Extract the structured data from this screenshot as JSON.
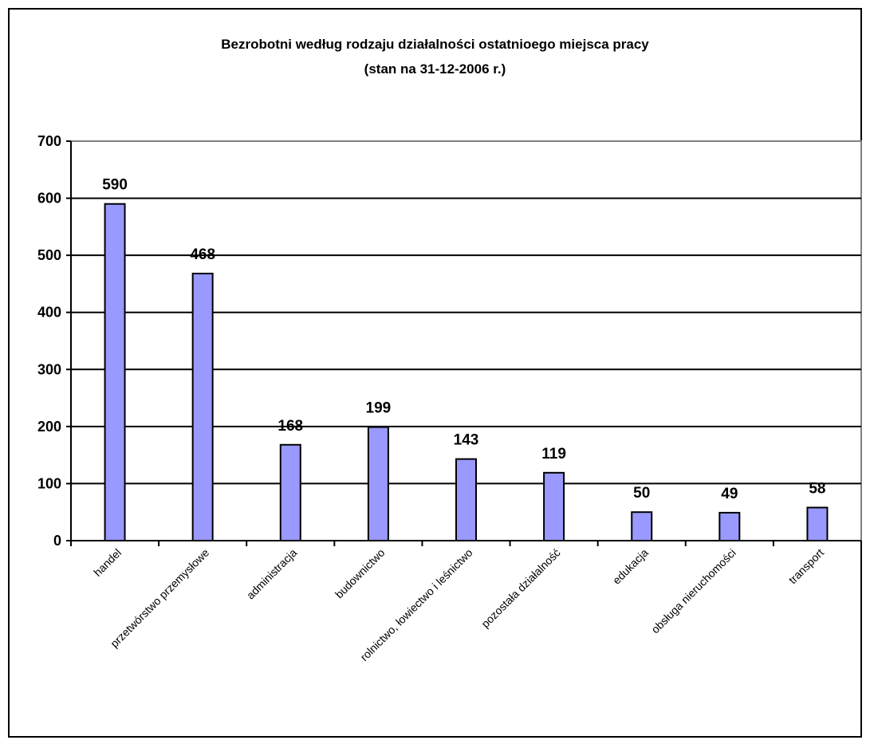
{
  "chart_data": {
    "type": "bar",
    "title": "Bezrobotni według rodzaju działalności ostatnioego miejsca pracy",
    "subtitle": "(stan na 31-12-2006 r.)",
    "categories": [
      "handel",
      "przetwórstwo przemysłowe",
      "administracja",
      "budownictwo",
      "rolnictwo, łowiectwo i leśnictwo",
      "pozostała działalność",
      "edukacja",
      "obsługa nieruchomości",
      "transport"
    ],
    "values": [
      590,
      468,
      168,
      199,
      143,
      119,
      50,
      49,
      58
    ],
    "ylim": [
      0,
      700
    ],
    "yticks": [
      0,
      100,
      200,
      300,
      400,
      500,
      600,
      700
    ],
    "xlabel": "",
    "ylabel": "",
    "grid": true,
    "legend": "none",
    "data_labels": true,
    "bar_color": "#9999ff"
  }
}
